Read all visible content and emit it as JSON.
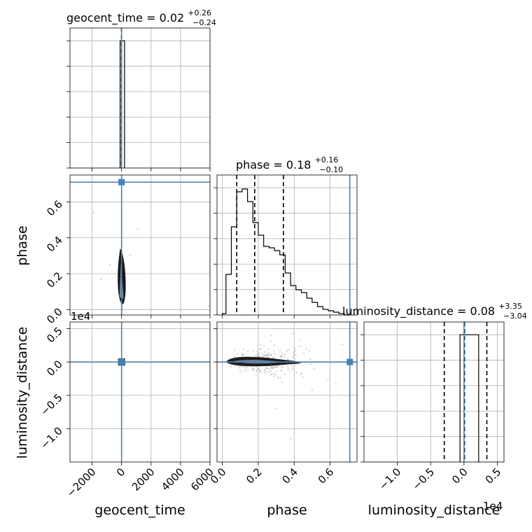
{
  "chart_data": {
    "type": "scatter",
    "subtype": "corner-plot",
    "parameters": [
      "geocent_time",
      "phase",
      "luminosity_distance"
    ],
    "axis_labels": {
      "x": [
        "geocent_time",
        "phase",
        "luminosity_distance"
      ],
      "y": [
        "",
        "phase",
        "luminosity_distance"
      ]
    },
    "offset_texts": {
      "luminosity_distance_y": "1e4",
      "luminosity_distance_x": "1e4"
    },
    "titles": [
      {
        "param": "geocent_time",
        "name": "geocent_time",
        "median": "0.02",
        "plus": "+0.26",
        "minus": "−0.24"
      },
      {
        "param": "phase",
        "name": "phase",
        "median": "0.18",
        "plus": "+0.16",
        "minus": "−0.10"
      },
      {
        "param": "luminosity_distance",
        "name": "luminosity_distance",
        "median": "0.08",
        "plus": "+3.35",
        "minus": "−3.04"
      }
    ],
    "ranges": {
      "geocent_time": [
        -3500,
        6000
      ],
      "phase": [
        -0.03,
        0.75
      ],
      "luminosity_distance": [
        -15000,
        6000
      ]
    },
    "ticks": {
      "geocent_time": {
        "values": [
          -2000,
          0,
          2000,
          4000,
          6000
        ],
        "labels": [
          "−2000",
          "0",
          "2000",
          "4000",
          "6000"
        ]
      },
      "phase": {
        "values": [
          0.0,
          0.2,
          0.4,
          0.6
        ],
        "labels": [
          "0.0",
          "0.2",
          "0.4",
          "0.6"
        ]
      },
      "luminosity_distance": {
        "values": [
          -10000,
          -5000,
          0,
          5000
        ],
        "labels": [
          "−1.0",
          "−0.5",
          "0.0",
          "0.5"
        ]
      }
    },
    "truths": {
      "geocent_time": 0,
      "phase": 0.71,
      "luminosity_distance": 0
    },
    "quantiles": {
      "geocent_time": [
        -0.22,
        0.02,
        0.28
      ],
      "phase": [
        0.08,
        0.18,
        0.34
      ],
      "luminosity_distance": [
        -2960,
        80,
        3430
      ]
    },
    "hist_geocent_time": {
      "bin_edges": [
        -100,
        0,
        200
      ],
      "counts": [
        1.0,
        1.0
      ],
      "ylim": [
        0,
        1.1
      ]
    },
    "hist_phase": {
      "bin_edges": [
        0.0,
        0.02,
        0.05,
        0.08,
        0.11,
        0.14,
        0.17,
        0.2,
        0.23,
        0.26,
        0.29,
        0.32,
        0.35,
        0.38,
        0.41,
        0.44,
        0.47,
        0.5,
        0.53,
        0.56,
        0.59,
        0.62,
        0.65,
        0.68,
        0.71
      ],
      "counts": [
        0.01,
        0.29,
        0.63,
        0.88,
        0.9,
        0.81,
        0.66,
        0.57,
        0.49,
        0.48,
        0.46,
        0.43,
        0.3,
        0.21,
        0.18,
        0.16,
        0.12,
        0.09,
        0.06,
        0.04,
        0.03,
        0.02,
        0.01,
        0.0
      ],
      "ylim": [
        0,
        1.0
      ]
    },
    "hist_luminosity_distance": {
      "bin_edges": [
        -600,
        100,
        2200
      ],
      "counts": [
        1.0,
        1.0
      ],
      "ylim": [
        0,
        1.1
      ]
    },
    "truth_color": "#4682b4",
    "contour_color": "#000000",
    "sample_color": "#9a9a9a"
  }
}
